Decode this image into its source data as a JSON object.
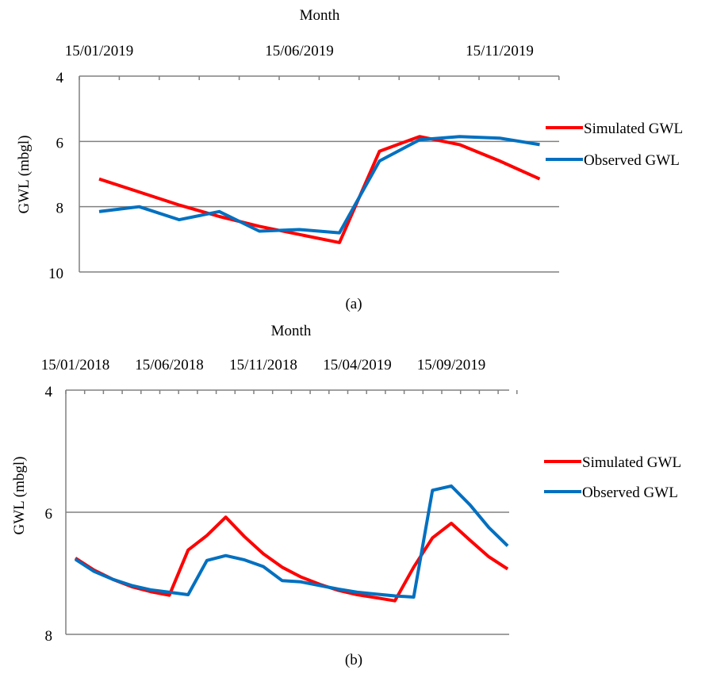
{
  "colors": {
    "simulated": "#ff0000",
    "observed": "#0070c0",
    "axis": "#808080",
    "grid": "#808080"
  },
  "chart_data": [
    {
      "type": "line",
      "caption": "(a)",
      "xlabel": "Month",
      "ylabel": "GWL (mbgl)",
      "x_axis_position": "top",
      "y_axis_inverted": true,
      "ylim": [
        4,
        10
      ],
      "yticks": [
        "4",
        "6",
        "8",
        "10"
      ],
      "x_tick_labels": [
        "15/01/2019",
        "15/06/2019",
        "15/11/2019"
      ],
      "x": [
        "15/01/2019",
        "15/02/2019",
        "15/03/2019",
        "15/04/2019",
        "15/05/2019",
        "15/06/2019",
        "15/07/2019",
        "15/08/2019",
        "15/09/2019",
        "15/10/2019",
        "15/11/2019",
        "15/12/2019"
      ],
      "grid": "horizontal",
      "legend_position": "right",
      "series": [
        {
          "name": "Simulated  GWL",
          "color": "#ff0000",
          "values": [
            7.15,
            7.55,
            7.95,
            8.3,
            8.6,
            8.85,
            9.1,
            6.3,
            5.85,
            6.1,
            6.6,
            7.15
          ]
        },
        {
          "name": "Observed  GWL",
          "color": "#0070c0",
          "values": [
            8.15,
            8.0,
            8.4,
            8.15,
            8.75,
            8.7,
            8.8,
            6.6,
            5.95,
            5.85,
            5.9,
            6.1
          ]
        }
      ]
    },
    {
      "type": "line",
      "caption": "(b)",
      "xlabel": "Month",
      "ylabel": "GWL (mbgl)",
      "x_axis_position": "top",
      "y_axis_inverted": true,
      "ylim": [
        4,
        8
      ],
      "yticks": [
        "4",
        "6",
        "8"
      ],
      "x_tick_labels": [
        "15/01/2018",
        "15/06/2018",
        "15/11/2018",
        "15/04/2019",
        "15/09/2019"
      ],
      "x": [
        "15/01/2018",
        "15/02/2018",
        "15/03/2018",
        "15/04/2018",
        "15/05/2018",
        "15/06/2018",
        "15/07/2018",
        "15/08/2018",
        "15/09/2018",
        "15/10/2018",
        "15/11/2018",
        "15/12/2018",
        "15/01/2019",
        "15/02/2019",
        "15/03/2019",
        "15/04/2019",
        "15/05/2019",
        "15/06/2019",
        "15/07/2019",
        "15/08/2019",
        "15/09/2019",
        "15/10/2019",
        "15/11/2019",
        "15/12/2019"
      ],
      "grid": "horizontal",
      "legend_position": "right",
      "series": [
        {
          "name": "Simulated  GWL",
          "color": "#ff0000",
          "values": [
            6.75,
            6.95,
            7.1,
            7.22,
            7.3,
            7.36,
            6.62,
            6.38,
            6.08,
            6.4,
            6.68,
            6.9,
            7.06,
            7.18,
            7.28,
            7.35,
            7.4,
            7.45,
            6.9,
            6.42,
            6.18,
            6.46,
            6.73,
            6.93
          ]
        },
        {
          "name": "Observed  GWL",
          "color": "#0070c0",
          "values": [
            6.77,
            6.97,
            7.1,
            7.2,
            7.27,
            7.31,
            7.35,
            6.79,
            6.71,
            6.78,
            6.89,
            7.12,
            7.14,
            7.2,
            7.26,
            7.31,
            7.34,
            7.37,
            7.39,
            5.64,
            5.57,
            5.88,
            6.25,
            6.55
          ]
        }
      ]
    }
  ]
}
